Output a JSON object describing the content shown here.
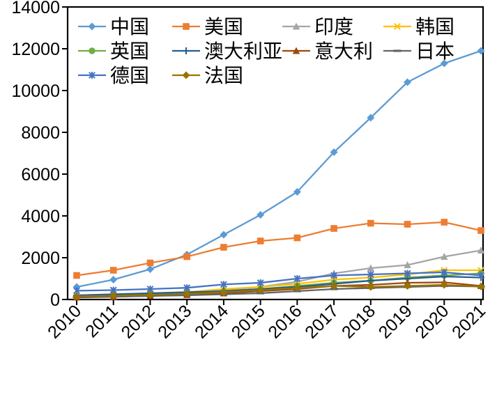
{
  "chart_data": {
    "type": "line",
    "title": "",
    "xlabel": "",
    "ylabel": "",
    "grid": false,
    "legend_position": "top-left-inside",
    "ylim": [
      0,
      14000
    ],
    "y_ticks": [
      0,
      2000,
      4000,
      6000,
      8000,
      10000,
      12000,
      14000
    ],
    "categories": [
      "2010",
      "2011",
      "2012",
      "2013",
      "2014",
      "2015",
      "2016",
      "2017",
      "2018",
      "2019",
      "2020",
      "2021"
    ],
    "series": [
      {
        "name": "中国",
        "name_en": "china",
        "color": "#5B9BD5",
        "marker": "diamond",
        "values": [
          600,
          950,
          1450,
          2150,
          3100,
          4050,
          5150,
          7050,
          8700,
          10400,
          11300,
          11900
        ]
      },
      {
        "name": "美国",
        "name_en": "usa",
        "color": "#ED7D31",
        "marker": "square",
        "values": [
          1150,
          1400,
          1750,
          2050,
          2500,
          2800,
          2950,
          3400,
          3650,
          3600,
          3700,
          3300
        ]
      },
      {
        "name": "印度",
        "name_en": "india",
        "color": "#A5A5A5",
        "marker": "triangle",
        "values": [
          100,
          150,
          250,
          350,
          450,
          600,
          850,
          1250,
          1500,
          1650,
          2050,
          2350
        ]
      },
      {
        "name": "韩国",
        "name_en": "korea",
        "color": "#FFC000",
        "marker": "x",
        "values": [
          200,
          250,
          300,
          350,
          500,
          600,
          750,
          950,
          1050,
          1200,
          1400,
          1400
        ]
      },
      {
        "name": "英国",
        "name_en": "uk",
        "color": "#70AD47",
        "marker": "circle",
        "values": [
          150,
          200,
          250,
          300,
          400,
          500,
          650,
          800,
          900,
          1050,
          1150,
          1250
        ]
      },
      {
        "name": "澳大利亚",
        "name_en": "australia",
        "color": "#255E91",
        "marker": "plus",
        "values": [
          200,
          250,
          300,
          350,
          400,
          500,
          600,
          750,
          900,
          1000,
          1100,
          1050
        ]
      },
      {
        "name": "意大利",
        "name_en": "italy",
        "color": "#9E480E",
        "marker": "triangle",
        "values": [
          100,
          130,
          170,
          220,
          300,
          400,
          500,
          650,
          700,
          800,
          820,
          650
        ]
      },
      {
        "name": "日本",
        "name_en": "japan",
        "color": "#636363",
        "marker": "dash",
        "values": [
          120,
          140,
          170,
          200,
          250,
          300,
          400,
          500,
          550,
          600,
          650,
          620
        ]
      },
      {
        "name": "德国",
        "name_en": "germany",
        "color": "#4472C4",
        "marker": "asterisk",
        "values": [
          420,
          450,
          500,
          560,
          720,
          800,
          1000,
          1150,
          1200,
          1250,
          1300,
          1150
        ]
      },
      {
        "name": "法国",
        "name_en": "france",
        "color": "#997300",
        "marker": "diamond",
        "values": [
          150,
          180,
          220,
          270,
          350,
          450,
          550,
          650,
          600,
          650,
          700,
          620
        ]
      }
    ],
    "style": {
      "axis_color": "#000000",
      "text_color": "#000000",
      "background": "#ffffff"
    }
  }
}
